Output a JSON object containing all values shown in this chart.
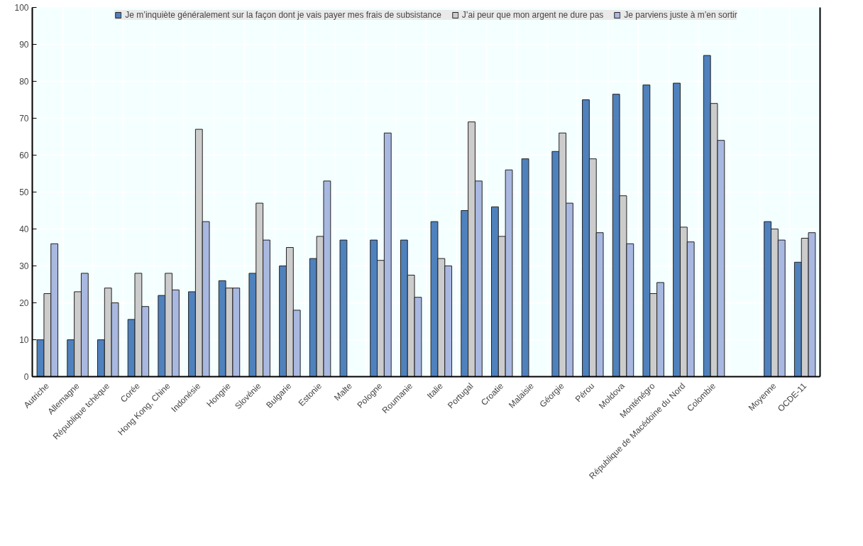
{
  "chart_data": {
    "type": "bar",
    "categories": [
      "Autriche",
      "Allemagne",
      "République tchèque",
      "Corée",
      "Hong Kong, Chine",
      "Indonésie",
      "Hongrie",
      "Slovénie",
      "Bulgarie",
      "Estonie",
      "Malte",
      "Pologne",
      "Roumanie",
      "Italie",
      "Portugal",
      "Croatie",
      "Malaisie",
      "Géorgie",
      "Pérou",
      "Moldova",
      "Monténégro",
      "République de Macédoine du Nord",
      "Colombie",
      null,
      "Moyenne",
      "OCDE-11"
    ],
    "series": [
      {
        "name": "Je m’inquiète généralement sur la façon dont je vais payer mes frais de subsistance",
        "color": "#4f81bd",
        "values": [
          10,
          10,
          10,
          15.5,
          22,
          23,
          26,
          28,
          30,
          32,
          37,
          37,
          37,
          42,
          45,
          46,
          59,
          61,
          75,
          76.5,
          79,
          79.5,
          87,
          null,
          42,
          31
        ]
      },
      {
        "name": "J’ai peur que mon argent ne dure pas",
        "color": "#cccccc",
        "values": [
          22.5,
          23,
          24,
          28,
          28,
          67,
          24,
          47,
          35,
          38,
          null,
          31.5,
          27.5,
          32,
          69,
          38,
          null,
          66,
          59,
          49,
          22.5,
          40.5,
          74,
          null,
          40,
          37.5
        ]
      },
      {
        "name": "Je parviens juste à m’en sortir",
        "color": "#a8b8e0",
        "values": [
          36,
          28,
          20,
          19,
          23.5,
          42,
          24,
          37,
          18,
          53,
          null,
          66,
          21.5,
          30,
          53,
          56,
          null,
          47,
          39,
          36,
          25.5,
          36.5,
          64,
          null,
          37,
          39
        ]
      }
    ],
    "ylim": [
      0,
      100
    ],
    "yticks": [
      0,
      10,
      20,
      30,
      40,
      50,
      60,
      70,
      80,
      90,
      100
    ],
    "grid": true,
    "legend": "top"
  }
}
